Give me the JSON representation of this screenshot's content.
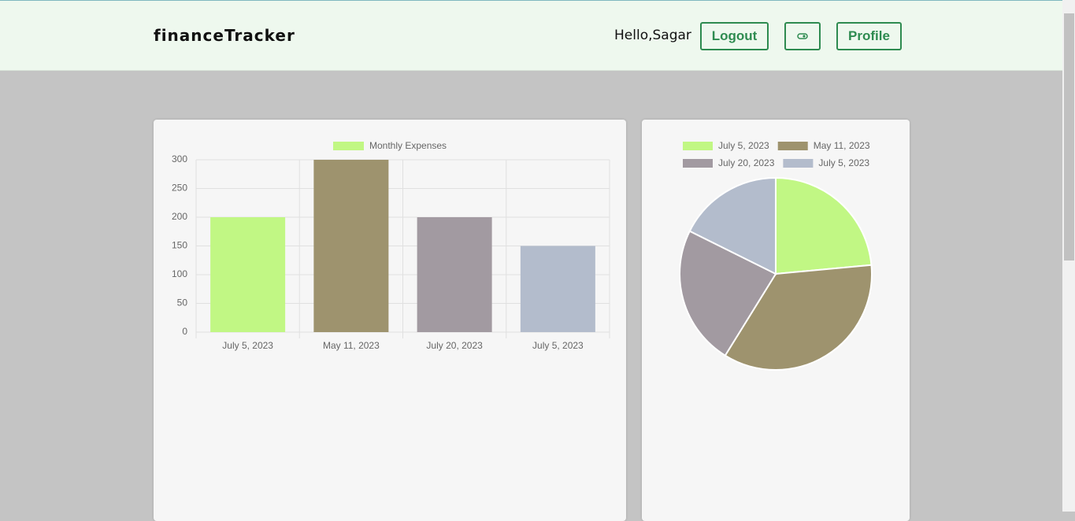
{
  "header": {
    "brand": "financeTracker",
    "greeting": "Hello,Sagar",
    "logout": "Logout",
    "profile": "Profile"
  },
  "chart_data": [
    {
      "type": "bar",
      "categories": [
        "July 5, 2023",
        "May 11, 2023",
        "July 20, 2023",
        "July 5, 2023"
      ],
      "series": [
        {
          "name": "Monthly Expenses",
          "colors": [
            "#c1f784",
            "#9e936e",
            "#a29aa1",
            "#b3bccc"
          ],
          "values": [
            200,
            300,
            200,
            150
          ]
        }
      ],
      "ylim": [
        0,
        300
      ],
      "yticks": [
        0,
        50,
        100,
        150,
        200,
        250,
        300
      ],
      "grid": true
    },
    {
      "type": "pie",
      "categories": [
        "July 5, 2023",
        "May 11, 2023",
        "July 20, 2023",
        "July 5, 2023"
      ],
      "colors": [
        "#c1f784",
        "#9e936e",
        "#a29aa1",
        "#b3bccc"
      ],
      "values": [
        200,
        300,
        200,
        150
      ]
    }
  ]
}
